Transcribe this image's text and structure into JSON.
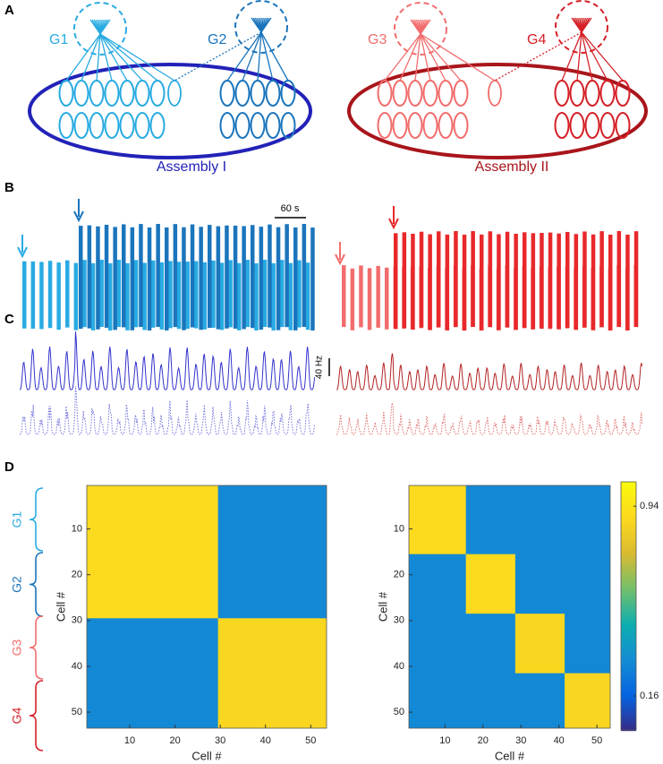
{
  "panel_labels": [
    "A",
    "B",
    "C",
    "D"
  ],
  "diagram": {
    "groups": [
      "G1",
      "G2",
      "G3",
      "G4"
    ],
    "assemblies": [
      "Assembly I",
      "Assembly II"
    ]
  },
  "scale_bars": {
    "time": "60 s",
    "rate": "40 Hz"
  },
  "heatmaps": [
    {
      "xlabel": "Cell #",
      "ylabel": "Cell #",
      "xlim": [
        0.5,
        53.5
      ],
      "ylim": [
        0.5,
        53.5
      ],
      "xticks": [
        10,
        20,
        30,
        40,
        50
      ],
      "yticks": [
        10,
        20,
        30,
        40,
        50
      ],
      "background": 0.3,
      "blocks": [
        {
          "start": 1,
          "end": 29,
          "value": 0.9
        },
        {
          "start": 30,
          "end": 53,
          "value": 0.88
        }
      ]
    },
    {
      "xlabel": "Cell #",
      "ylabel": "Cell #",
      "xlim": [
        0.5,
        53.5
      ],
      "ylim": [
        0.5,
        53.5
      ],
      "xticks": [
        10,
        20,
        30,
        40,
        50
      ],
      "yticks": [
        10,
        20,
        30,
        40,
        50
      ],
      "background": 0.3,
      "blocks": [
        {
          "start": 1,
          "end": 15,
          "value": 0.9
        },
        {
          "start": 16,
          "end": 28,
          "value": 0.9
        },
        {
          "start": 29,
          "end": 41,
          "value": 0.88
        },
        {
          "start": 42,
          "end": 53,
          "value": 0.88
        }
      ]
    }
  ],
  "colorbar": {
    "clim": [
      0.02,
      1.04
    ],
    "ticks": [
      0.16,
      0.94
    ]
  }
}
